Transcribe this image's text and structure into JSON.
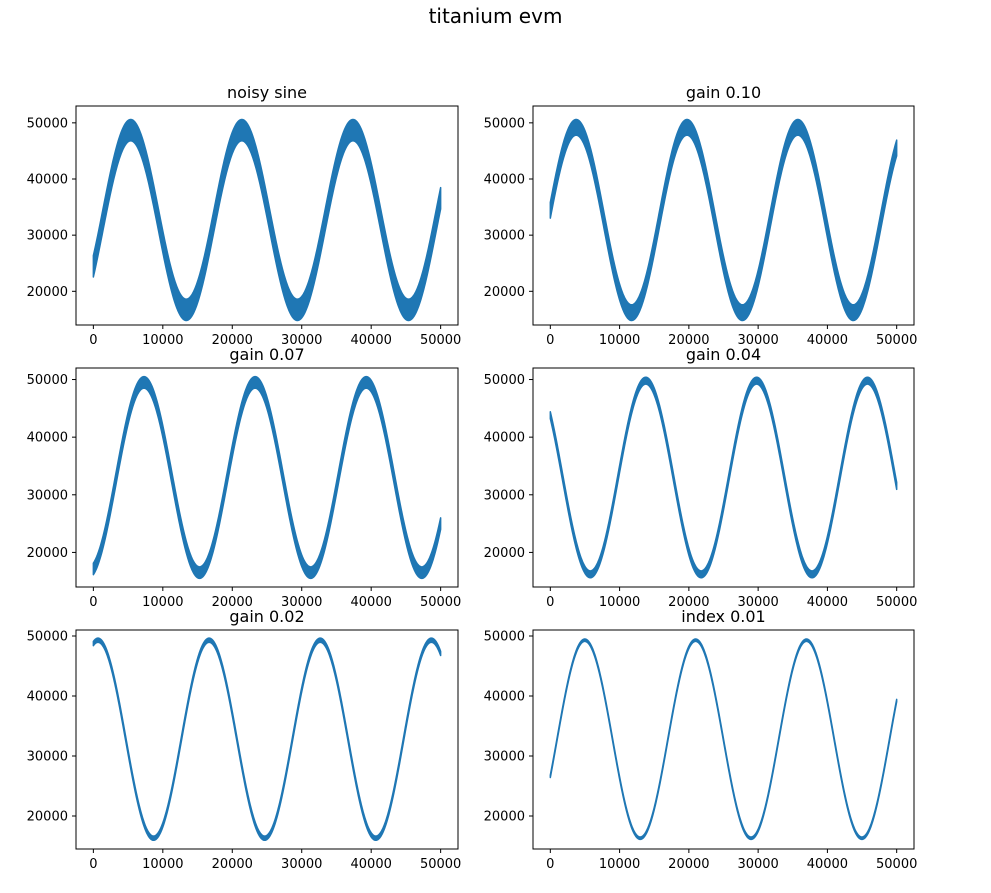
{
  "figure": {
    "title": "titanium evm",
    "line_color": "#1f77b4"
  },
  "chart_data": [
    {
      "type": "line",
      "title": "noisy sine",
      "xlabel": "",
      "ylabel": "",
      "x_range": [
        0,
        49999
      ],
      "xlim": [
        -2500,
        52500
      ],
      "ylim": [
        14000,
        53000
      ],
      "xticks": [
        0,
        10000,
        20000,
        30000,
        40000,
        50000
      ],
      "yticks": [
        20000,
        30000,
        40000,
        50000
      ],
      "signal": {
        "offset": 32700,
        "amplitude": 16000,
        "period": 16000,
        "phase_deg": -31,
        "band": 3800
      },
      "grid": false
    },
    {
      "type": "line",
      "title": "gain 0.10",
      "xlabel": "",
      "ylabel": "",
      "x_range": [
        0,
        49999
      ],
      "xlim": [
        -2500,
        52500
      ],
      "ylim": [
        14000,
        53000
      ],
      "xticks": [
        0,
        10000,
        20000,
        30000,
        40000,
        50000
      ],
      "yticks": [
        20000,
        30000,
        40000,
        50000
      ],
      "signal": {
        "offset": 32700,
        "amplitude": 16500,
        "period": 16000,
        "phase_deg": 6,
        "band": 2800
      },
      "grid": false
    },
    {
      "type": "line",
      "title": "gain 0.07",
      "xlabel": "",
      "ylabel": "",
      "x_range": [
        0,
        49999
      ],
      "xlim": [
        -2500,
        52500
      ],
      "ylim": [
        14000,
        52000
      ],
      "xticks": [
        0,
        10000,
        20000,
        30000,
        40000,
        50000
      ],
      "yticks": [
        20000,
        30000,
        40000,
        50000
      ],
      "signal": {
        "offset": 33000,
        "amplitude": 16500,
        "period": 16000,
        "phase_deg": -74,
        "band": 2000
      },
      "grid": false
    },
    {
      "type": "line",
      "title": "gain 0.04",
      "xlabel": "",
      "ylabel": "",
      "x_range": [
        0,
        49999
      ],
      "xlim": [
        -2500,
        52500
      ],
      "ylim": [
        14000,
        52000
      ],
      "xticks": [
        0,
        10000,
        20000,
        30000,
        40000,
        50000
      ],
      "yticks": [
        20000,
        30000,
        40000,
        50000
      ],
      "signal": {
        "offset": 33000,
        "amplitude": 16800,
        "period": 16000,
        "phase_deg": 140,
        "band": 1200
      },
      "grid": false
    },
    {
      "type": "line",
      "title": "gain 0.02",
      "xlabel": "",
      "ylabel": "",
      "x_range": [
        0,
        49999
      ],
      "xlim": [
        -2500,
        52500
      ],
      "ylim": [
        14500,
        51000
      ],
      "xticks": [
        0,
        10000,
        20000,
        30000,
        40000,
        50000
      ],
      "yticks": [
        20000,
        30000,
        40000,
        50000
      ],
      "signal": {
        "offset": 32800,
        "amplitude": 16500,
        "period": 16000,
        "phase_deg": 75,
        "band": 700
      },
      "grid": false
    },
    {
      "type": "line",
      "title": "index 0.01",
      "xlabel": "",
      "ylabel": "",
      "x_range": [
        0,
        49999
      ],
      "xlim": [
        -2500,
        52500
      ],
      "ylim": [
        14500,
        51000
      ],
      "xticks": [
        0,
        10000,
        20000,
        30000,
        40000,
        50000
      ],
      "yticks": [
        20000,
        30000,
        40000,
        50000
      ],
      "signal": {
        "offset": 32800,
        "amplitude": 16500,
        "period": 16000,
        "phase_deg": -22,
        "band": 400
      },
      "grid": false
    }
  ]
}
